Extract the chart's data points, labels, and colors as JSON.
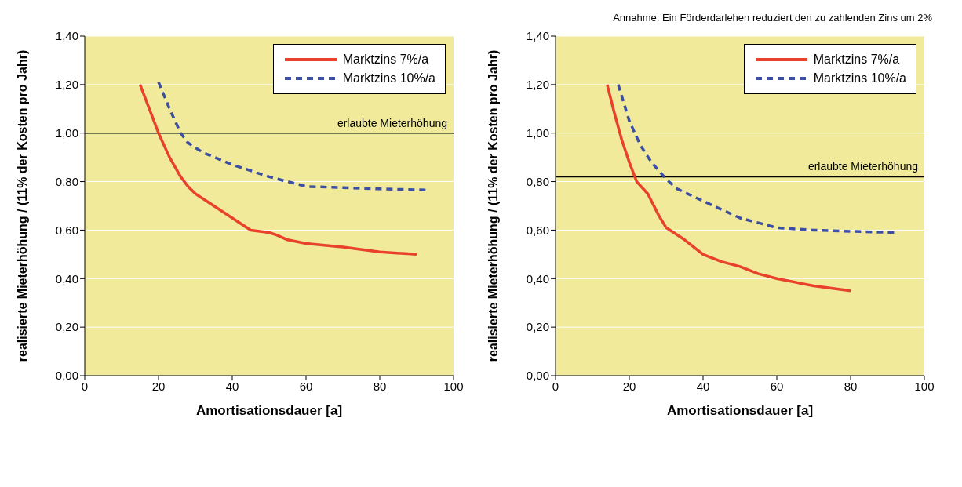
{
  "chart_data": [
    {
      "type": "line",
      "xlabel": "Amortisationsdauer [a]",
      "ylabel": "realisierte Mieterhöhung / (11% der Kosten pro Jahr)",
      "xlim": [
        0,
        100
      ],
      "xticks": [
        0,
        20,
        40,
        60,
        80,
        100
      ],
      "ylim": [
        0,
        1.4
      ],
      "yticks": [
        {
          "value": 0,
          "label": "0,00"
        },
        {
          "value": 0.2,
          "label": "0,20"
        },
        {
          "value": 0.4,
          "label": "0,40"
        },
        {
          "value": 0.6,
          "label": "0,60"
        },
        {
          "value": 0.8,
          "label": "0,80"
        },
        {
          "value": 1,
          "label": "1,00"
        },
        {
          "value": 1.2,
          "label": "1,20"
        },
        {
          "value": 1.4,
          "label": "1,40"
        }
      ],
      "grid": "y",
      "legend": "top right",
      "marker": "none",
      "series": [
        {
          "name": "Marktzins 7%/a",
          "color": "#e8412c",
          "line_style": "solid",
          "x": [
            15,
            18,
            20,
            23,
            26,
            28,
            30,
            35,
            40,
            45,
            50,
            52,
            55,
            60,
            70,
            80,
            90
          ],
          "values": [
            1.2,
            1.08,
            1.0,
            0.9,
            0.82,
            0.78,
            0.75,
            0.7,
            0.65,
            0.6,
            0.59,
            0.58,
            0.56,
            0.545,
            0.53,
            0.51,
            0.5
          ]
        },
        {
          "name": "Marktzins 10%/a",
          "color": "#3d4fa0",
          "line_style": "dashed",
          "x": [
            20,
            23,
            26,
            28,
            32,
            40,
            50,
            60,
            70,
            80,
            93
          ],
          "values": [
            1.21,
            1.1,
            1.0,
            0.96,
            0.92,
            0.87,
            0.82,
            0.78,
            0.775,
            0.77,
            0.765
          ]
        }
      ],
      "ref_lines": [
        {
          "axis": "y",
          "value": 1.0,
          "label": "erlaubte Mieterhöhung",
          "color": "#000000"
        }
      ]
    },
    {
      "type": "line",
      "title": "Annahme: Ein Förderdarlehen reduziert den zu zahlenden Zins um 2%",
      "xlabel": "Amortisationsdauer [a]",
      "ylabel": "realisierte Mieterhöhung / (11% der Kosten pro Jahr)",
      "xlim": [
        0,
        100
      ],
      "xticks": [
        0,
        20,
        40,
        60,
        80,
        100
      ],
      "ylim": [
        0,
        1.4
      ],
      "yticks": [
        {
          "value": 0,
          "label": "0,00"
        },
        {
          "value": 0.2,
          "label": "0,20"
        },
        {
          "value": 0.4,
          "label": "0,40"
        },
        {
          "value": 0.6,
          "label": "0,60"
        },
        {
          "value": 0.8,
          "label": "0,80"
        },
        {
          "value": 1,
          "label": "1,00"
        },
        {
          "value": 1.2,
          "label": "1,20"
        },
        {
          "value": 1.4,
          "label": "1,40"
        }
      ],
      "grid": "y",
      "legend": "top right",
      "marker": "none",
      "series": [
        {
          "name": "Marktzins 7%/a",
          "color": "#e8412c",
          "line_style": "solid",
          "x": [
            14,
            16,
            18,
            20,
            22,
            25,
            28,
            30,
            35,
            40,
            45,
            50,
            55,
            60,
            70,
            80
          ],
          "values": [
            1.2,
            1.08,
            0.97,
            0.88,
            0.8,
            0.75,
            0.66,
            0.61,
            0.56,
            0.5,
            0.47,
            0.45,
            0.42,
            0.4,
            0.37,
            0.35
          ]
        },
        {
          "name": "Marktzins 10%/a",
          "color": "#3d4fa0",
          "line_style": "dashed",
          "x": [
            17,
            20,
            23,
            26,
            30,
            33,
            40,
            50,
            55,
            60,
            70,
            80,
            92
          ],
          "values": [
            1.2,
            1.05,
            0.95,
            0.88,
            0.81,
            0.77,
            0.72,
            0.65,
            0.63,
            0.61,
            0.6,
            0.595,
            0.59
          ]
        }
      ],
      "ref_lines": [
        {
          "axis": "y",
          "value": 0.82,
          "label": "erlaubte Mieterhöhung",
          "color": "#000000"
        }
      ]
    }
  ]
}
